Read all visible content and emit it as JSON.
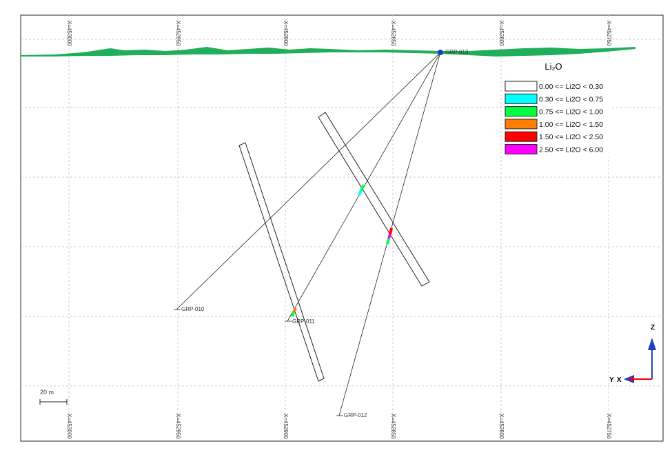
{
  "section": {
    "top_coordinates": [
      "X=453000",
      "X=452950",
      "X=452900",
      "X=452850",
      "X=452800",
      "X=452750"
    ],
    "bottom_coordinates": [
      "X=453000",
      "X=452950",
      "X=452900",
      "X=452850",
      "X=452800",
      "X=452750"
    ],
    "holes": [
      "GRP-013",
      "GRP-010",
      "GRP-011",
      "GRP-012"
    ],
    "scale": "20 m",
    "axes": {
      "z": "Z",
      "y": "Y",
      "x": "X"
    }
  },
  "legend": {
    "title": "Li₂O",
    "items": [
      {
        "label": "0.00 <= Li2O < 0.30",
        "color": "#ffffff"
      },
      {
        "label": "0.30 <= Li2O < 0.75",
        "color": "#00ffff"
      },
      {
        "label": "0.75 <= Li2O < 1.00",
        "color": "#00ff40"
      },
      {
        "label": "1.00 <= Li2O < 1.50",
        "color": "#ff8000"
      },
      {
        "label": "1.50 <= Li2O < 2.50",
        "color": "#ff0000"
      },
      {
        "label": "2.50 <= Li2O < 6.00",
        "color": "#ff00ff"
      }
    ]
  }
}
